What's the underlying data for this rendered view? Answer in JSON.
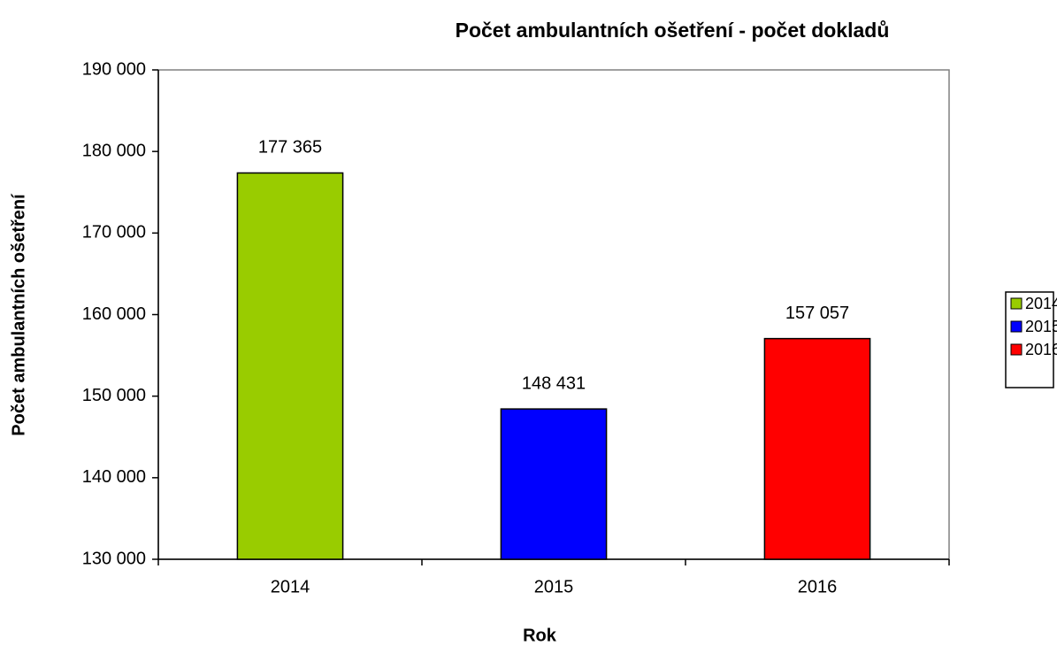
{
  "chart_data": {
    "type": "bar",
    "title": "Počet ambulantních ošetření - počet dokladů",
    "x_label": "Rok",
    "y_label": "Počet ambulantních ošetření",
    "categories": [
      "2014",
      "2015",
      "2016"
    ],
    "values": [
      177365,
      148431,
      157057
    ],
    "value_labels": [
      "177 365",
      "148 431",
      "157 057"
    ],
    "colors": [
      "#99cc00",
      "#0000ff",
      "#ff0000"
    ],
    "ylim": [
      130000,
      190000
    ],
    "yticks": [
      {
        "value": 130000,
        "label": "130 000"
      },
      {
        "value": 140000,
        "label": "140 000"
      },
      {
        "value": 150000,
        "label": "150 000"
      },
      {
        "value": 160000,
        "label": "160 000"
      },
      {
        "value": 170000,
        "label": "170 000"
      },
      {
        "value": 180000,
        "label": "180 000"
      },
      {
        "value": 190000,
        "label": "190 000"
      }
    ],
    "grid": false,
    "legend": "right"
  }
}
